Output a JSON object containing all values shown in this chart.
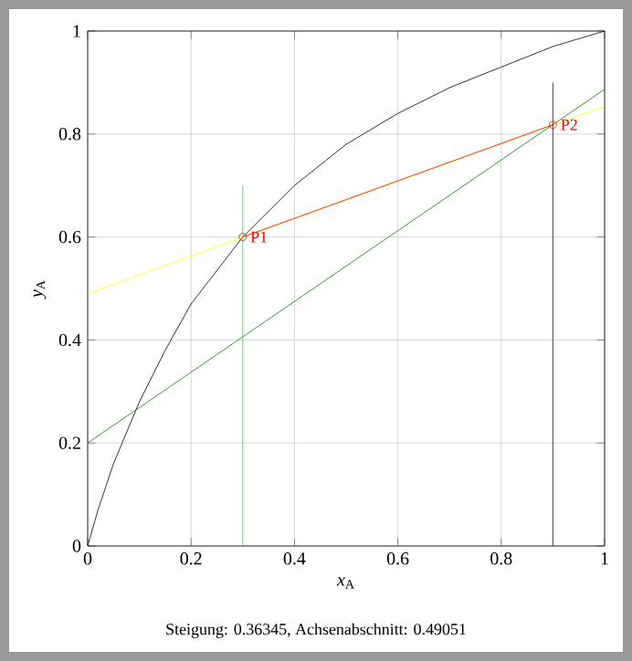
{
  "chart_data": {
    "type": "line",
    "xlabel": "*x*$_{A}$",
    "ylabel": "*y*$_{A}$",
    "xlim": [
      0,
      1
    ],
    "ylim": [
      0,
      1
    ],
    "xticks": [
      0,
      0.2,
      0.4,
      0.6,
      0.8,
      1
    ],
    "yticks": [
      0,
      0.2,
      0.4,
      0.6,
      0.8,
      1
    ],
    "grid": true,
    "marker": "none",
    "series": [
      {
        "color": "#000000",
        "x": [
          0,
          0.02,
          0.05,
          0.1,
          0.15,
          0.2,
          0.3,
          0.4,
          0.5,
          0.6,
          0.7,
          0.8,
          0.9,
          1
        ],
        "values": [
          0,
          0.07,
          0.16,
          0.28,
          0.38,
          0.47,
          0.6,
          0.7,
          0.78,
          0.84,
          0.89,
          0.93,
          0.97,
          1
        ]
      },
      {
        "color": "#ffff00",
        "x": [
          0,
          1
        ],
        "values": [
          0.49,
          0.854
        ]
      },
      {
        "color": "#ff0000",
        "x": [
          0.3,
          0.9
        ],
        "values": [
          0.6,
          0.818
        ]
      },
      {
        "color": "#008000",
        "x": [
          0,
          1
        ],
        "values": [
          0.2,
          0.887
        ]
      },
      {
        "color": "#00ff00",
        "x": [
          0.3,
          0.3
        ],
        "values": [
          0,
          0.7
        ]
      },
      {
        "color": "#0000ff",
        "x": [
          0.9,
          0.9
        ],
        "values": [
          0,
          0.9
        ]
      },
      {
        "type": "scatter",
        "marker": "circle",
        "color": "#ff0000",
        "x": [
          0.3,
          0.9
        ],
        "values": [
          0.6,
          0.818
        ]
      }
    ],
    "annotations": [
      {
        "text": "P1",
        "x": 0.3,
        "y": 0.6
      },
      {
        "text": "P2",
        "x": 0.9,
        "y": 0.818
      },
      "Steigung: 0.36345, Achsenabschnitt: 0.49051"
    ]
  }
}
